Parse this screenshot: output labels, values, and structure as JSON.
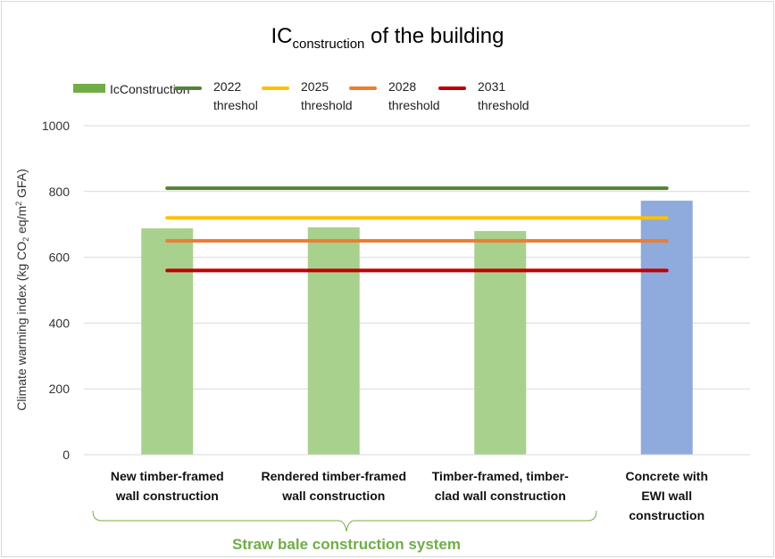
{
  "chart_data": {
    "type": "bar",
    "title_main": "IC",
    "title_sub": "construction",
    "title_rest": " of the building",
    "ylabel_parts": [
      "Climate warming index (kg CO",
      "2",
      " eq/m",
      "2",
      " GFA)"
    ],
    "ylim": [
      0,
      1000
    ],
    "yticks": [
      0,
      200,
      400,
      600,
      800,
      1000
    ],
    "grid": true,
    "legend_position": "top",
    "categories": [
      [
        "New timber-framed",
        "wall construction"
      ],
      [
        "Rendered timber-framed",
        "wall construction"
      ],
      [
        "Timber-framed, timber-",
        "clad wall construction"
      ],
      [
        "Concrete with",
        "EWI wall",
        "construction"
      ]
    ],
    "series": [
      {
        "name": "IcConstruction",
        "kind": "bar",
        "values": [
          688,
          691,
          680,
          772
        ],
        "colors": [
          "#a9d18e",
          "#a9d18e",
          "#a9d18e",
          "#8faadc"
        ],
        "legend_color": "#70ad47"
      }
    ],
    "thresholds": [
      {
        "name": [
          "2022",
          "threshol"
        ],
        "value": 810,
        "color": "#548235"
      },
      {
        "name": [
          "2025",
          "threshold"
        ],
        "value": 720,
        "color": "#ffc000"
      },
      {
        "name": [
          "2028",
          "threshold"
        ],
        "value": 650,
        "color": "#ed7d31"
      },
      {
        "name": [
          "2031",
          "threshold"
        ],
        "value": 560,
        "color": "#c00000"
      }
    ],
    "group_label": "Straw bale construction system",
    "group_color": "#70ad47"
  }
}
